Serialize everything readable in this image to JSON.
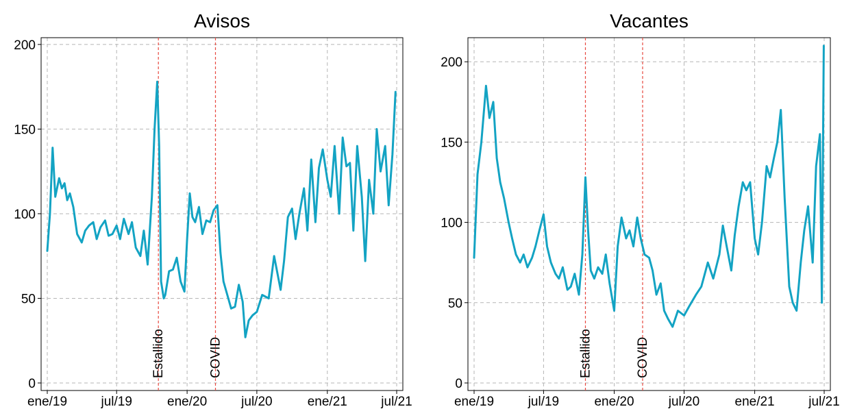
{
  "chart_data": [
    {
      "type": "line",
      "title": "Avisos",
      "xlabel": "",
      "ylabel": "",
      "x_range": [
        "2019-01-01",
        "2021-07-01"
      ],
      "ylim": [
        0,
        204
      ],
      "x_ticks": [
        {
          "date": "2019-01-01",
          "label": "ene/19"
        },
        {
          "date": "2019-07-01",
          "label": "jul/19"
        },
        {
          "date": "2020-01-01",
          "label": "ene/20"
        },
        {
          "date": "2020-07-01",
          "label": "jul/20"
        },
        {
          "date": "2021-01-01",
          "label": "ene/21"
        },
        {
          "date": "2021-07-01",
          "label": "jul/21"
        }
      ],
      "y_ticks": [
        0,
        50,
        100,
        150,
        200
      ],
      "grid": true,
      "line_color": "#13a3c3",
      "events": [
        {
          "date": "2019-10-18",
          "label": "Estallido",
          "color": "#e8483f"
        },
        {
          "date": "2020-03-15",
          "label": "COVID",
          "color": "#e8483f"
        }
      ],
      "series": [
        {
          "x": [
            "2019-01-01",
            "2019-01-08",
            "2019-01-15",
            "2019-01-22",
            "2019-02-01",
            "2019-02-08",
            "2019-02-15",
            "2019-02-22",
            "2019-03-01",
            "2019-03-10",
            "2019-03-20",
            "2019-04-01",
            "2019-04-10",
            "2019-04-20",
            "2019-05-01",
            "2019-05-10",
            "2019-05-20",
            "2019-06-01",
            "2019-06-10",
            "2019-06-20",
            "2019-07-01",
            "2019-07-10",
            "2019-07-20",
            "2019-08-01",
            "2019-08-10",
            "2019-08-20",
            "2019-09-01",
            "2019-09-10",
            "2019-09-20",
            "2019-10-01",
            "2019-10-08",
            "2019-10-15",
            "2019-10-20",
            "2019-10-25",
            "2019-11-01",
            "2019-11-05",
            "2019-11-15",
            "2019-11-25",
            "2019-12-05",
            "2019-12-15",
            "2019-12-25",
            "2020-01-01",
            "2020-01-08",
            "2020-01-15",
            "2020-01-22",
            "2020-02-01",
            "2020-02-10",
            "2020-02-20",
            "2020-03-01",
            "2020-03-10",
            "2020-03-20",
            "2020-03-28",
            "2020-04-05",
            "2020-04-15",
            "2020-04-25",
            "2020-05-05",
            "2020-05-15",
            "2020-05-25",
            "2020-06-01",
            "2020-06-10",
            "2020-06-20",
            "2020-07-01",
            "2020-07-15",
            "2020-08-01",
            "2020-08-15",
            "2020-09-01",
            "2020-09-10",
            "2020-09-20",
            "2020-10-01",
            "2020-10-10",
            "2020-10-20",
            "2020-11-01",
            "2020-11-10",
            "2020-11-20",
            "2020-12-01",
            "2020-12-10",
            "2020-12-20",
            "2021-01-01",
            "2021-01-10",
            "2021-01-20",
            "2021-02-01",
            "2021-02-10",
            "2021-02-20",
            "2021-03-01",
            "2021-03-10",
            "2021-03-20",
            "2021-04-01",
            "2021-04-10",
            "2021-04-20",
            "2021-05-01",
            "2021-05-10",
            "2021-05-20",
            "2021-06-01",
            "2021-06-10",
            "2021-06-20",
            "2021-06-28"
          ],
          "values": [
            78,
            100,
            139,
            110,
            121,
            115,
            118,
            108,
            112,
            104,
            88,
            83,
            90,
            93,
            95,
            85,
            92,
            96,
            87,
            88,
            93,
            85,
            97,
            88,
            95,
            80,
            75,
            90,
            70,
            110,
            150,
            178,
            140,
            60,
            50,
            52,
            66,
            67,
            74,
            60,
            54,
            85,
            112,
            98,
            95,
            104,
            88,
            96,
            95,
            102,
            105,
            77,
            60,
            52,
            44,
            45,
            58,
            48,
            27,
            37,
            40,
            42,
            52,
            50,
            75,
            55,
            72,
            98,
            103,
            85,
            100,
            115,
            90,
            132,
            95,
            127,
            138,
            120,
            110,
            140,
            100,
            145,
            128,
            130,
            90,
            140,
            110,
            72,
            120,
            100,
            150,
            125,
            140,
            105,
            135,
            172
          ]
        }
      ]
    },
    {
      "type": "line",
      "title": "Vacantes",
      "xlabel": "",
      "ylabel": "",
      "x_range": [
        "2019-01-01",
        "2021-07-01"
      ],
      "ylim": [
        0,
        215
      ],
      "x_ticks": [
        {
          "date": "2019-01-01",
          "label": "ene/19"
        },
        {
          "date": "2019-07-01",
          "label": "jul/19"
        },
        {
          "date": "2020-01-01",
          "label": "ene/20"
        },
        {
          "date": "2020-07-01",
          "label": "jul/20"
        },
        {
          "date": "2021-01-01",
          "label": "ene/21"
        },
        {
          "date": "2021-07-01",
          "label": "jul/21"
        }
      ],
      "y_ticks": [
        0,
        50,
        100,
        150,
        200
      ],
      "grid": true,
      "line_color": "#13a3c3",
      "events": [
        {
          "date": "2019-10-18",
          "label": "Estallido",
          "color": "#e8483f"
        },
        {
          "date": "2020-03-15",
          "label": "COVID",
          "color": "#e8483f"
        }
      ],
      "series": [
        {
          "x": [
            "2019-01-01",
            "2019-01-10",
            "2019-01-20",
            "2019-02-01",
            "2019-02-10",
            "2019-02-20",
            "2019-03-01",
            "2019-03-10",
            "2019-03-20",
            "2019-04-01",
            "2019-04-10",
            "2019-04-20",
            "2019-05-01",
            "2019-05-10",
            "2019-05-20",
            "2019-06-01",
            "2019-06-10",
            "2019-06-20",
            "2019-07-01",
            "2019-07-10",
            "2019-07-20",
            "2019-08-01",
            "2019-08-10",
            "2019-08-20",
            "2019-09-01",
            "2019-09-10",
            "2019-09-20",
            "2019-10-01",
            "2019-10-10",
            "2019-10-18",
            "2019-10-25",
            "2019-11-01",
            "2019-11-10",
            "2019-11-20",
            "2019-12-01",
            "2019-12-10",
            "2019-12-20",
            "2020-01-01",
            "2020-01-10",
            "2020-01-20",
            "2020-02-01",
            "2020-02-10",
            "2020-02-20",
            "2020-03-01",
            "2020-03-10",
            "2020-03-20",
            "2020-04-01",
            "2020-04-10",
            "2020-04-20",
            "2020-05-01",
            "2020-05-10",
            "2020-05-20",
            "2020-06-01",
            "2020-06-15",
            "2020-07-01",
            "2020-07-15",
            "2020-08-01",
            "2020-08-15",
            "2020-09-01",
            "2020-09-15",
            "2020-10-01",
            "2020-10-10",
            "2020-10-20",
            "2020-11-01",
            "2020-11-10",
            "2020-11-20",
            "2020-12-01",
            "2020-12-10",
            "2020-12-20",
            "2021-01-01",
            "2021-01-10",
            "2021-01-20",
            "2021-02-01",
            "2021-02-10",
            "2021-02-20",
            "2021-03-01",
            "2021-03-10",
            "2021-03-20",
            "2021-04-01",
            "2021-04-10",
            "2021-04-20",
            "2021-05-01",
            "2021-05-10",
            "2021-05-20",
            "2021-06-01",
            "2021-06-10",
            "2021-06-20",
            "2021-06-25",
            "2021-06-30"
          ],
          "values": [
            78,
            130,
            150,
            185,
            165,
            175,
            140,
            125,
            115,
            100,
            90,
            80,
            75,
            80,
            72,
            78,
            85,
            95,
            105,
            85,
            75,
            68,
            65,
            72,
            58,
            60,
            68,
            55,
            80,
            128,
            95,
            70,
            65,
            72,
            68,
            80,
            62,
            45,
            85,
            103,
            90,
            95,
            85,
            103,
            90,
            80,
            78,
            70,
            55,
            62,
            45,
            40,
            35,
            45,
            42,
            48,
            55,
            60,
            75,
            65,
            80,
            98,
            85,
            70,
            92,
            110,
            125,
            120,
            125,
            90,
            80,
            100,
            135,
            128,
            140,
            150,
            170,
            115,
            60,
            50,
            45,
            75,
            95,
            110,
            75,
            135,
            155,
            50,
            210
          ]
        }
      ]
    }
  ]
}
